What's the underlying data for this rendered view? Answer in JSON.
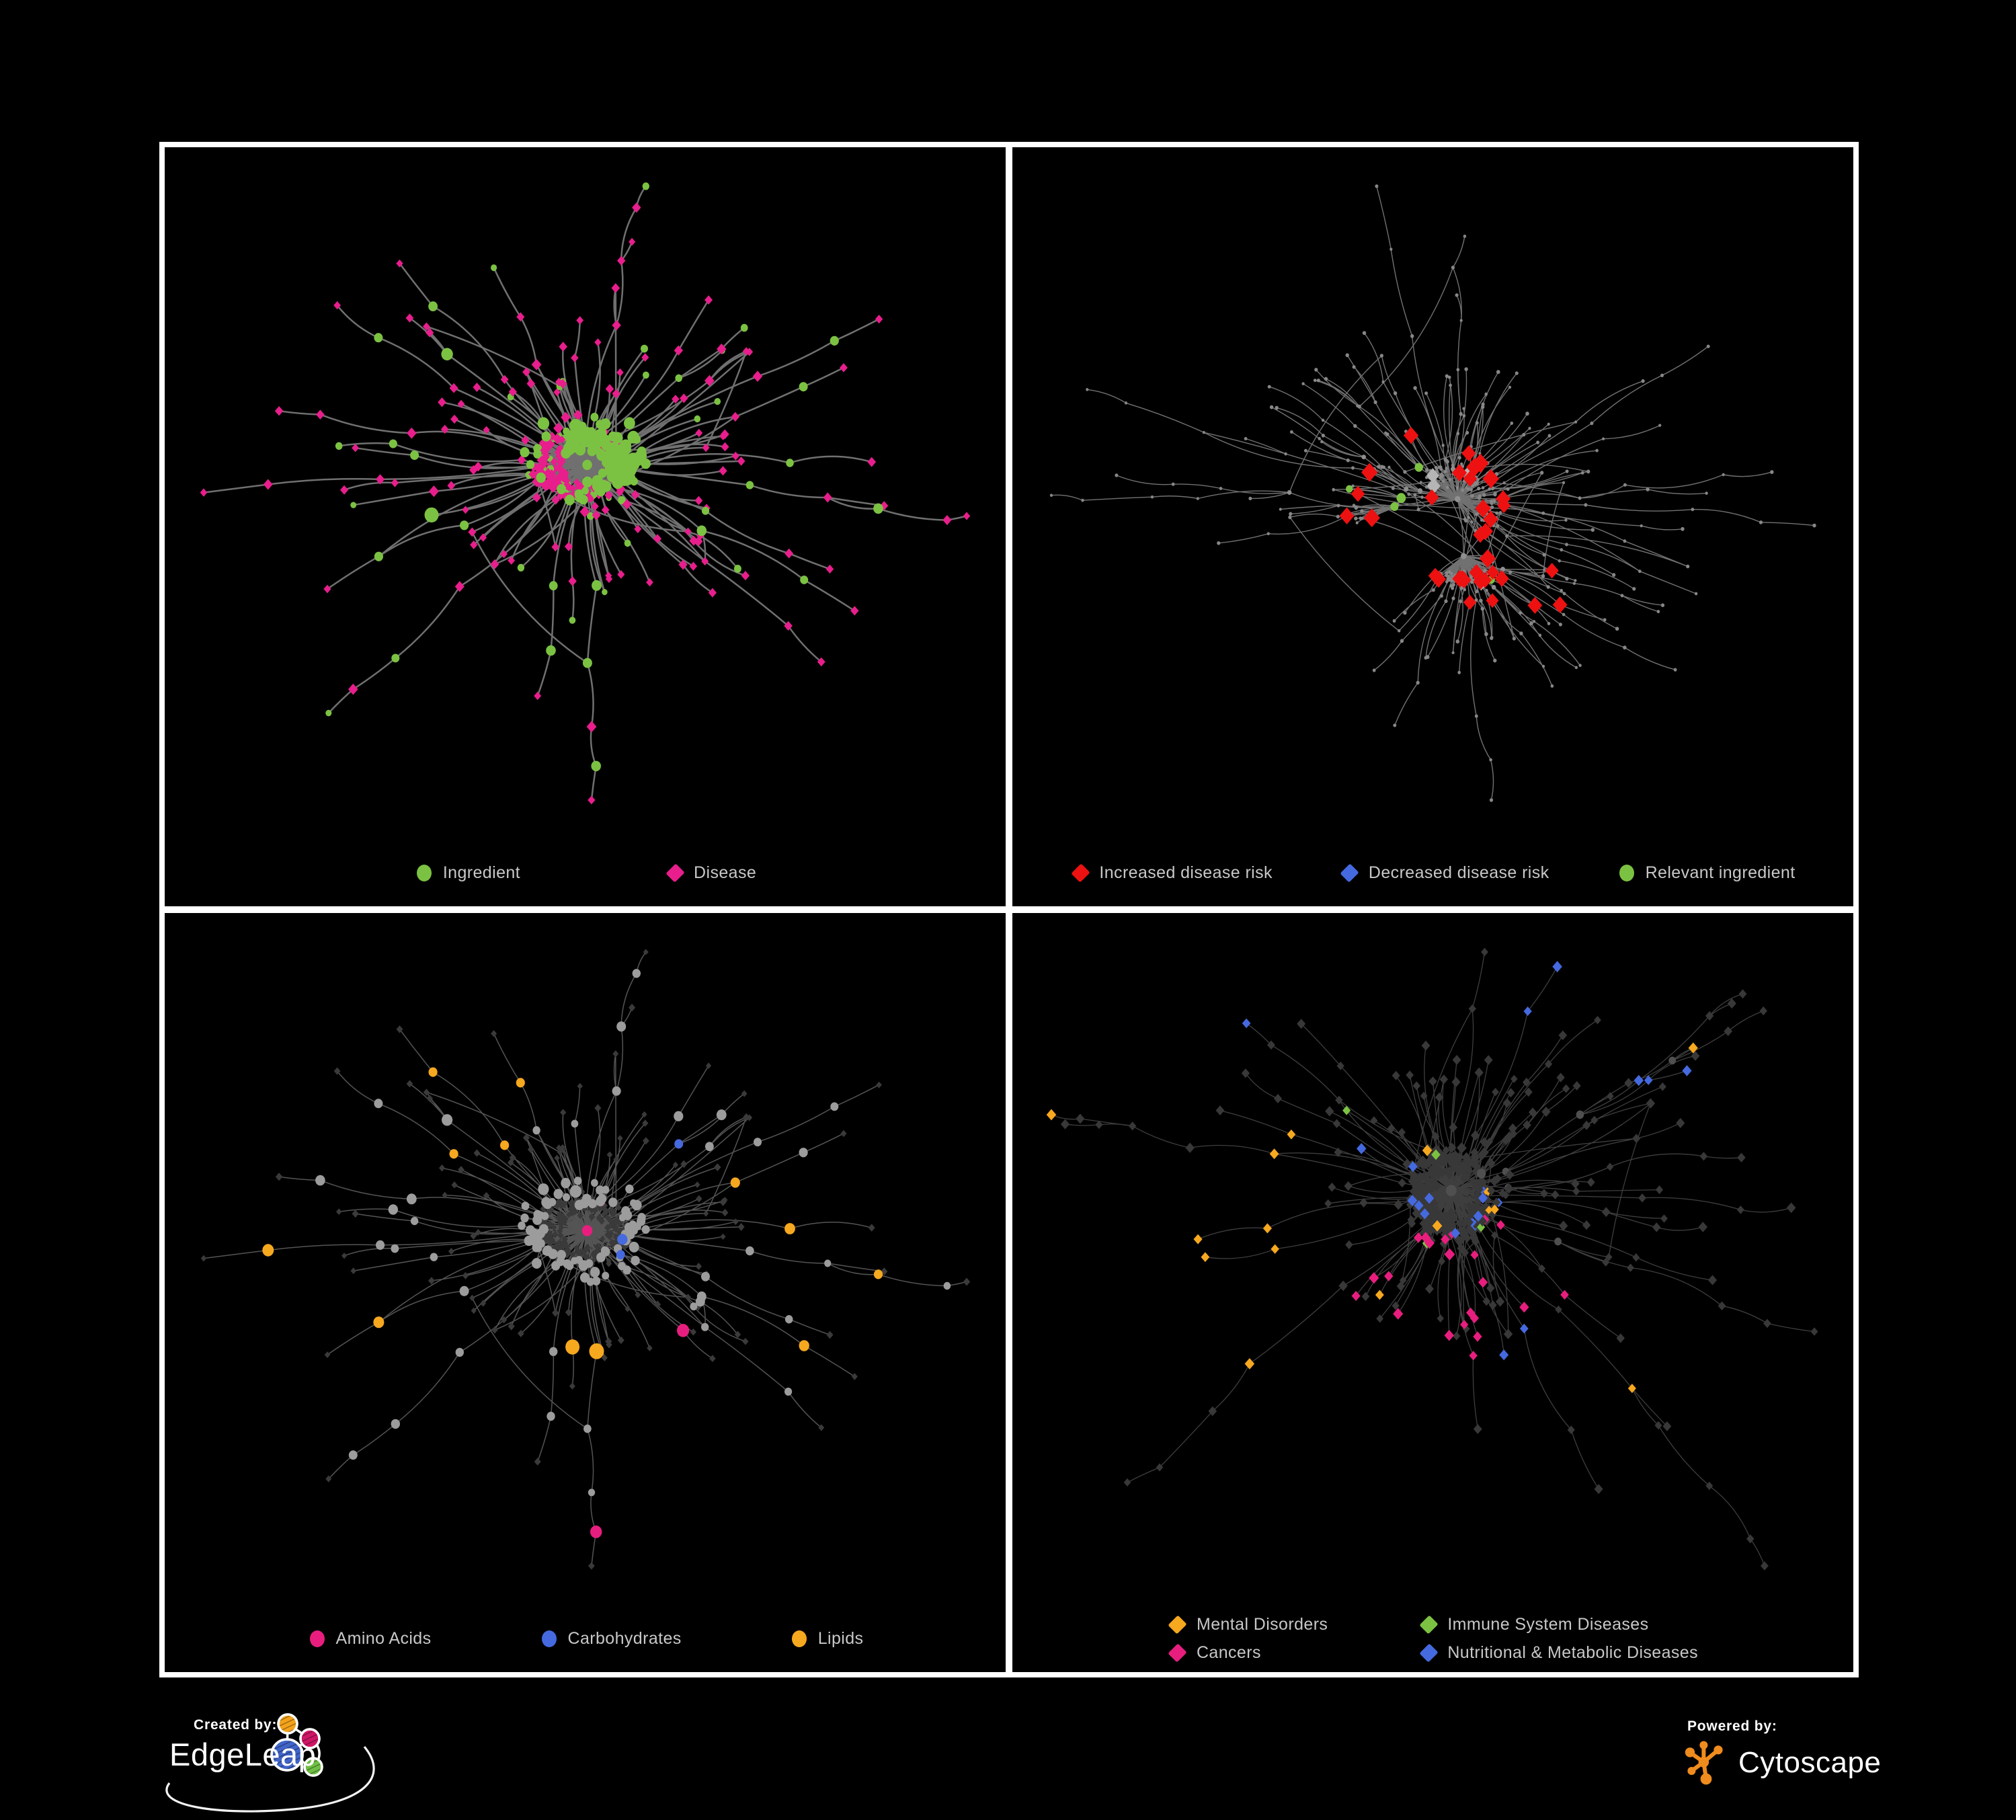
{
  "page": {
    "background": "#000000",
    "panel_border_color": "#ffffff",
    "legend_text_color": "#c8c8c8"
  },
  "footer": {
    "created_by_label": "Created by:",
    "created_by_brand": "EdgeLeap",
    "powered_by_label": "Powered by:",
    "powered_by_brand": "Cytoscape",
    "edgeleap_logo_colors": {
      "orange": "#F3A31B",
      "magenta": "#CE1566",
      "blue": "#4064C8",
      "green": "#6FBF44"
    },
    "cytoscape_logo_color": "#F08B1D"
  },
  "panels": [
    {
      "id": "ingredient-disease-network",
      "legend": {
        "layout": "row",
        "items": [
          {
            "shape": "circle",
            "color": "#7CC242",
            "label": "Ingredient"
          },
          {
            "shape": "diamond",
            "color": "#E81E8C",
            "label": "Disease"
          }
        ]
      },
      "network": {
        "seed": 11,
        "nodes": 430,
        "chain": 0.26,
        "pref": 1.55,
        "step": 0.16,
        "decay": 0.8,
        "extra": 0.07,
        "edge": {
          "c": "#7a7a7a",
          "w": 2.5,
          "o": 0.92
        },
        "rules": [
          {
            "t": "any",
            "near": [
              0.53,
              0.44,
              0.055
            ],
            "p": 0.8,
            "shape": "c",
            "color": "#7CC242",
            "s": [
              6,
              10
            ]
          },
          {
            "t": "any",
            "near": [
              0.3,
              0.52,
              0.03
            ],
            "p": 0.9,
            "shape": "c",
            "color": "#7CC242",
            "s": [
              9,
              13
            ]
          },
          {
            "t": "hub",
            "p": 0.8,
            "shape": "c",
            "color": "#7CC242",
            "s": [
              7,
              14
            ],
            "deg": true
          },
          {
            "t": "hub",
            "p": 1,
            "shape": "d",
            "color": "#E81E8C",
            "s": [
              7,
              10
            ],
            "deg": true
          },
          {
            "t": "mid",
            "p": 0.42,
            "shape": "c",
            "color": "#7CC242",
            "s": [
              5.5,
              8
            ]
          },
          {
            "t": "mid",
            "p": 1,
            "shape": "d",
            "color": "#E81E8C",
            "s": [
              5.5,
              7.5
            ]
          },
          {
            "t": "leaf",
            "p": 0.2,
            "shape": "c",
            "color": "#7CC242",
            "s": [
              4.5,
              6
            ]
          },
          {
            "t": "leaf",
            "p": 1,
            "shape": "d",
            "color": "#E81E8C",
            "s": [
              5,
              6.5
            ]
          }
        ]
      }
    },
    {
      "id": "disease-risk-network",
      "legend": {
        "layout": "row",
        "items": [
          {
            "shape": "diamond",
            "color": "#EE1111",
            "label": "Increased disease risk"
          },
          {
            "shape": "diamond",
            "color": "#4569DE",
            "label": "Decreased disease risk"
          },
          {
            "shape": "circle",
            "color": "#7CC242",
            "label": "Relevant ingredient"
          }
        ]
      },
      "network": {
        "seed": 23,
        "nodes": 430,
        "chain": 0.3,
        "pref": 1.5,
        "step": 0.16,
        "decay": 0.83,
        "extra": 0.07,
        "edge": {
          "c": "#8e8e8e",
          "w": 1.4,
          "o": 0.8
        },
        "rules": [
          {
            "t": "nonhub",
            "near": [
              0.82,
              0.38,
              0.05
            ],
            "p": 0.9,
            "shape": "d",
            "color": "#4569DE",
            "s": [
              9.5,
              10.5
            ]
          },
          {
            "t": "nonhub",
            "near": [
              0.26,
              0.5,
              0.085
            ],
            "p": 0.22,
            "shape": "d",
            "color": "#4569DE",
            "s": [
              9,
              10.5
            ]
          },
          {
            "t": "nonhub",
            "near": [
              0.47,
              0.52,
              0.13
            ],
            "p": 0.15,
            "shape": "d",
            "color": "#EE1111",
            "s": [
              10,
              12.5
            ]
          },
          {
            "t": "nonhub",
            "near": [
              0.28,
              0.46,
              0.09
            ],
            "p": 0.13,
            "shape": "d",
            "color": "#EE1111",
            "s": [
              9.5,
              11.5
            ]
          },
          {
            "t": "nonhub",
            "near": [
              0.68,
              0.78,
              0.08
            ],
            "p": 0.2,
            "shape": "d",
            "color": "#EE1111",
            "s": [
              10,
              11.5
            ]
          },
          {
            "t": "nonhub",
            "near": [
              0.62,
              0.62,
              0.09
            ],
            "p": 0.1,
            "shape": "d",
            "color": "#EE1111",
            "s": [
              9.5,
              11
            ]
          },
          {
            "t": "nonhub",
            "near": [
              0.46,
              0.52,
              0.17
            ],
            "p": 0.05,
            "shape": "d",
            "color": "#B5B5B5",
            "s": [
              9,
              10.5
            ]
          },
          {
            "t": "hub",
            "near": [
              0.4,
              0.48,
              0.2
            ],
            "p": 0.3,
            "shape": "c",
            "color": "#7CC242",
            "s": [
              6,
              7.5
            ]
          },
          {
            "t": "hub",
            "near": [
              0.69,
              0.76,
              0.1
            ],
            "p": 0.45,
            "shape": "c",
            "color": "#7CC242",
            "s": [
              6,
              7.5
            ]
          },
          {
            "t": "any",
            "p": 0.01,
            "shape": "c",
            "color": "#7CC242",
            "s": [
              5.5,
              6.5
            ]
          },
          {
            "t": "hub",
            "p": 1,
            "shape": "c",
            "color": "#8f8f8f",
            "s": [
              3,
              4.6
            ],
            "deg": true
          },
          {
            "t": "any",
            "p": 1,
            "shape": "c",
            "color": "#878787",
            "s": [
              2.2,
              3
            ]
          }
        ]
      }
    },
    {
      "id": "nutrient-category-network",
      "legend": {
        "layout": "row",
        "items": [
          {
            "shape": "circle",
            "color": "#E81E7F",
            "label": "Amino Acids"
          },
          {
            "shape": "circle",
            "color": "#4569DE",
            "label": "Carbohydrates"
          },
          {
            "shape": "circle",
            "color": "#F6A81F",
            "label": "Lipids"
          }
        ]
      },
      "network": {
        "seed": 11,
        "nodes": 430,
        "chain": 0.26,
        "pref": 1.55,
        "step": 0.16,
        "decay": 0.8,
        "extra": 0.07,
        "edge": {
          "c": "#9a9a9a",
          "w": 1.5,
          "o": 0.55
        },
        "rules": [
          {
            "t": "leaf",
            "p": 1,
            "shape": "d",
            "color": "#3a3a3a",
            "s": [
              4,
              5.2
            ]
          },
          {
            "t": "any",
            "near": [
              0.37,
              0.29,
              0.13
            ],
            "p": 0.72,
            "shape": "c",
            "color": "#F6A81F",
            "s": [
              6.5,
              12
            ],
            "deg": true
          },
          {
            "t": "any",
            "near": [
              0.53,
              0.63,
              0.06
            ],
            "p": 0.9,
            "shape": "c",
            "color": "#F6A81F",
            "s": [
              8,
              12
            ]
          },
          {
            "t": "any",
            "near": [
              0.46,
              0.22,
              0.08
            ],
            "p": 0.38,
            "shape": "c",
            "color": "#4569DE",
            "s": [
              6.5,
              9.5
            ]
          },
          {
            "t": "any",
            "p": 0.05,
            "shape": "c",
            "color": "#E81E7F",
            "s": [
              6.5,
              10.5
            ]
          },
          {
            "t": "any",
            "p": 0.05,
            "shape": "c",
            "color": "#F6A81F",
            "s": [
              6.5,
              10
            ]
          },
          {
            "t": "any",
            "p": 0.02,
            "shape": "c",
            "color": "#4569DE",
            "s": [
              6.5,
              9
            ]
          },
          {
            "t": "hub",
            "p": 1,
            "shape": "c",
            "color": "#9c9c9c",
            "s": [
              6.5,
              13
            ],
            "deg": true
          },
          {
            "t": "any",
            "p": 1,
            "shape": "c",
            "color": "#9c9c9c",
            "s": [
              5.5,
              8
            ]
          }
        ]
      }
    },
    {
      "id": "disease-category-network",
      "legend": {
        "layout": "grid",
        "items": [
          {
            "shape": "diamond",
            "color": "#F6A81F",
            "label": "Mental Disorders"
          },
          {
            "shape": "diamond",
            "color": "#7CC242",
            "label": "Immune System Diseases"
          },
          {
            "shape": "diamond",
            "color": "#E81E7F",
            "label": "Cancers"
          },
          {
            "shape": "diamond",
            "color": "#4569DE",
            "label": "Nutritional & Metabolic Diseases"
          }
        ]
      },
      "network": {
        "seed": 37,
        "nodes": 500,
        "chain": 0.27,
        "pref": 1.5,
        "step": 0.155,
        "decay": 0.82,
        "extra": 0.08,
        "edge": {
          "c": "#8a8a8a",
          "w": 1.3,
          "o": 0.45
        },
        "rules": [
          {
            "t": "hub",
            "p": 1,
            "shape": "c",
            "color": "#4f4f4f",
            "s": [
              4.5,
              8.5
            ],
            "deg": true
          },
          {
            "t": "any",
            "near": [
              0.23,
              0.52,
              0.1
            ],
            "p": 0.85,
            "shape": "d",
            "color": "#F6A81F",
            "s": [
              6,
              8
            ]
          },
          {
            "t": "any",
            "near": [
              0.23,
              0.52,
              0.16
            ],
            "p": 0.3,
            "shape": "d",
            "color": "#F6A81F",
            "s": [
              6,
              7.5
            ]
          },
          {
            "t": "any",
            "near": [
              0.47,
              0.55,
              0.09
            ],
            "p": 0.5,
            "shape": "d",
            "color": "#E81E7F",
            "s": [
              6,
              8
            ]
          },
          {
            "t": "any",
            "near": [
              0.52,
              0.61,
              0.13
            ],
            "p": 0.22,
            "shape": "d",
            "color": "#E81E7F",
            "s": [
              6,
              7.5
            ]
          },
          {
            "t": "any",
            "near": [
              0.6,
              0.63,
              0.055
            ],
            "p": 0.55,
            "shape": "d",
            "color": "#4569DE",
            "s": [
              6,
              8
            ]
          },
          {
            "t": "any",
            "near": [
              0.79,
              0.3,
              0.09
            ],
            "p": 0.4,
            "shape": "d",
            "color": "#4569DE",
            "s": [
              6,
              7.5
            ]
          },
          {
            "t": "any",
            "near": [
              0.62,
              0.09,
              0.06
            ],
            "p": 0.45,
            "shape": "d",
            "color": "#4569DE",
            "s": [
              6,
              7.5
            ]
          },
          {
            "t": "any",
            "near": [
              0.17,
              0.18,
              0.06
            ],
            "p": 0.35,
            "shape": "d",
            "color": "#4569DE",
            "s": [
              6,
              7.5
            ]
          },
          {
            "t": "any",
            "near": [
              0.88,
              0.3,
              0.05
            ],
            "p": 0.6,
            "shape": "d",
            "color": "#E81E7F",
            "s": [
              6,
              7.5
            ]
          },
          {
            "t": "any",
            "p": 0.03,
            "shape": "d",
            "color": "#4569DE",
            "s": [
              6,
              7.5
            ]
          },
          {
            "t": "any",
            "p": 0.02,
            "shape": "d",
            "color": "#F6A81F",
            "s": [
              6,
              7.5
            ]
          },
          {
            "t": "any",
            "p": 0.015,
            "shape": "d",
            "color": "#E81E7F",
            "s": [
              6,
              7.5
            ]
          },
          {
            "t": "any",
            "p": 0.012,
            "shape": "d",
            "color": "#7CC242",
            "s": [
              6,
              7.5
            ]
          },
          {
            "t": "any",
            "p": 1,
            "shape": "d",
            "color": "#383838",
            "s": [
              5.2,
              6.8
            ]
          }
        ]
      }
    }
  ]
}
